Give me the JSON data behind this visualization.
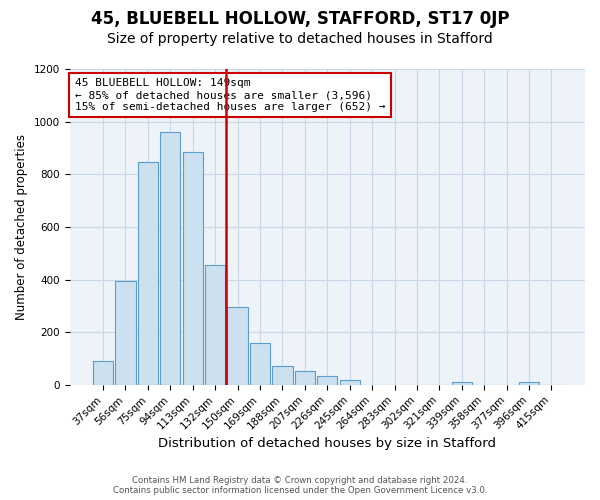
{
  "title": "45, BLUEBELL HOLLOW, STAFFORD, ST17 0JP",
  "subtitle": "Size of property relative to detached houses in Stafford",
  "xlabel": "Distribution of detached houses by size in Stafford",
  "ylabel": "Number of detached properties",
  "footer_line1": "Contains HM Land Registry data © Crown copyright and database right 2024.",
  "footer_line2": "Contains public sector information licensed under the Open Government Licence v3.0.",
  "bin_labels": [
    "37sqm",
    "56sqm",
    "75sqm",
    "94sqm",
    "113sqm",
    "132sqm",
    "150sqm",
    "169sqm",
    "188sqm",
    "207sqm",
    "226sqm",
    "245sqm",
    "264sqm",
    "283sqm",
    "302sqm",
    "321sqm",
    "339sqm",
    "358sqm",
    "377sqm",
    "396sqm",
    "415sqm"
  ],
  "bar_values": [
    90,
    395,
    845,
    960,
    885,
    455,
    295,
    160,
    72,
    52,
    35,
    18,
    0,
    0,
    0,
    0,
    10,
    0,
    0,
    10,
    0
  ],
  "bar_color": "#cce0f0",
  "bar_edge_color": "#5a9ec9",
  "vline_position": 5.5,
  "vline_color": "#cc0000",
  "annotation_line1": "45 BLUEBELL HOLLOW: 149sqm",
  "annotation_line2": "← 85% of detached houses are smaller (3,596)",
  "annotation_line3": "15% of semi-detached houses are larger (652) →",
  "annotation_box_color": "#cc0000",
  "ylim": [
    0,
    1200
  ],
  "yticks": [
    0,
    200,
    400,
    600,
    800,
    1000,
    1200
  ],
  "grid_color": "#c8d8e8",
  "plot_bg_color": "#edf3f9",
  "title_fontsize": 12,
  "subtitle_fontsize": 10,
  "xlabel_fontsize": 9.5,
  "ylabel_fontsize": 8.5,
  "tick_fontsize": 7.5,
  "annotation_fontsize": 8
}
